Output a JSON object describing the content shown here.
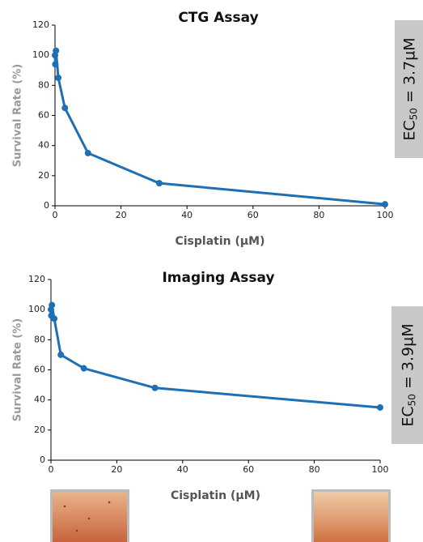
{
  "chart_data": [
    {
      "type": "line",
      "title": "CTG Assay",
      "x_label": "Cisplatin (µM)",
      "y_label": "Survival Rate (%)",
      "annotation": {
        "main": "EC",
        "sub": "50",
        "rest": " = 3.7µM"
      },
      "x": [
        0,
        0.1,
        0.3,
        1,
        3,
        10,
        31.6,
        100
      ],
      "series": [
        {
          "name": "CTG",
          "color": "#1f6fb5",
          "values": [
            100,
            94,
            103,
            85,
            65,
            35,
            15,
            1
          ]
        }
      ],
      "xlim": [
        0,
        100
      ],
      "xticks": [
        0,
        20,
        40,
        60,
        80,
        100
      ],
      "ylim": [
        0,
        120
      ],
      "yticks": [
        0,
        20,
        40,
        60,
        80,
        100,
        120
      ],
      "grid": false
    },
    {
      "type": "line",
      "title": "Imaging Assay",
      "x_label": "Cisplatin (µM)",
      "y_label": "Survival Rate (%)",
      "annotation": {
        "main": "EC",
        "sub": "50",
        "rest": " = 3.9µM"
      },
      "x": [
        0,
        0.1,
        0.3,
        1,
        3,
        10,
        31.6,
        100
      ],
      "series": [
        {
          "name": "Imaging",
          "color": "#1f6fb5",
          "values": [
            100,
            96,
            103,
            94,
            70,
            61,
            48,
            35
          ]
        }
      ],
      "xlim": [
        0,
        100
      ],
      "xticks": [
        0,
        20,
        40,
        60,
        80,
        100
      ],
      "ylim": [
        0,
        120
      ],
      "yticks": [
        0,
        20,
        40,
        60,
        80,
        100,
        120
      ],
      "grid": false
    }
  ]
}
